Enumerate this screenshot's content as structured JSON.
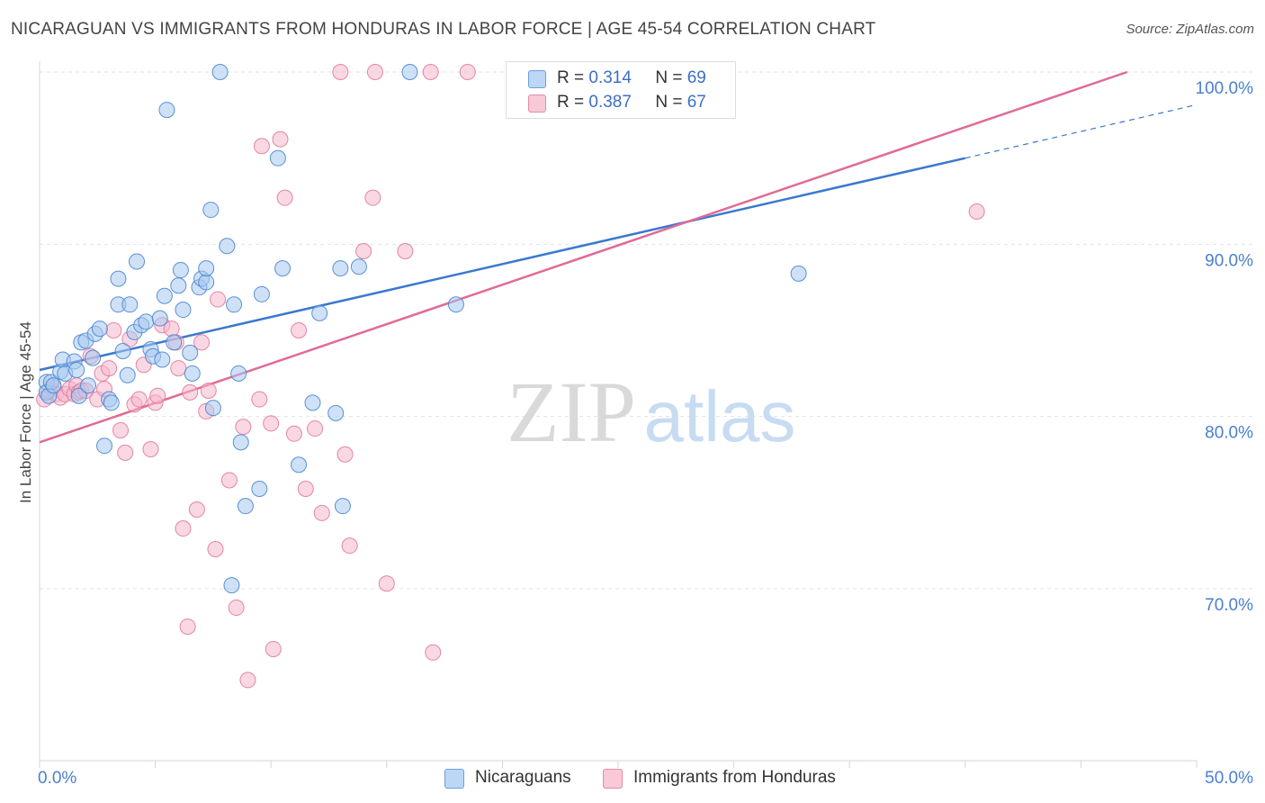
{
  "title": "NICARAGUAN VS IMMIGRANTS FROM HONDURAS IN LABOR FORCE | AGE 45-54 CORRELATION CHART",
  "source": "Source: ZipAtlas.com",
  "watermark": {
    "zip": "ZIP",
    "atlas": "atlas"
  },
  "legend": {
    "series1": {
      "r_label": "R =",
      "r_value": "0.314",
      "n_label": "N =",
      "n_value": "69"
    },
    "series2": {
      "r_label": "R =",
      "r_value": "0.387",
      "n_label": "N =",
      "n_value": "67"
    }
  },
  "colors": {
    "blue_fill": "#a8c8f0",
    "blue_stroke": "#4a86d0",
    "blue_line": "#3a78d0",
    "pink_fill": "#f6b8cc",
    "pink_stroke": "#e07a9c",
    "pink_line": "#e06b96",
    "axis_text": "#4a7fd0",
    "grid": "#dde3ea"
  },
  "chart_data": {
    "type": "scatter",
    "title": "NICARAGUAN VS IMMIGRANTS FROM HONDURAS IN LABOR FORCE | AGE 45-54 CORRELATION CHART",
    "xlabel": "",
    "ylabel": "In Labor Force | Age 45-54",
    "xlim": [
      0,
      50
    ],
    "ylim": [
      60,
      100
    ],
    "x_tick_labels": [
      "0.0%",
      "50.0%"
    ],
    "y_ticks": [
      70,
      80,
      90,
      100
    ],
    "y_tick_labels": [
      "70.0%",
      "80.0%",
      "90.0%",
      "100.0%"
    ],
    "series": [
      {
        "name": "Nicaraguans",
        "r": 0.314,
        "n": 69,
        "trend": {
          "x0": 0,
          "y0": 82.7,
          "x1": 40,
          "y1": 95.0,
          "dash_to_x": 50,
          "dash_to_y": 98.1
        },
        "points": [
          [
            0.3,
            82.0
          ],
          [
            0.3,
            81.4
          ],
          [
            0.4,
            81.2
          ],
          [
            0.5,
            82.0
          ],
          [
            0.6,
            81.8
          ],
          [
            0.9,
            82.6
          ],
          [
            1.0,
            83.3
          ],
          [
            1.1,
            82.5
          ],
          [
            1.5,
            83.2
          ],
          [
            1.6,
            82.7
          ],
          [
            1.7,
            81.2
          ],
          [
            1.8,
            84.3
          ],
          [
            2.0,
            84.4
          ],
          [
            2.1,
            81.8
          ],
          [
            2.3,
            83.4
          ],
          [
            2.4,
            84.8
          ],
          [
            2.6,
            85.1
          ],
          [
            2.8,
            78.3
          ],
          [
            3.0,
            81.0
          ],
          [
            3.1,
            80.8
          ],
          [
            3.4,
            86.5
          ],
          [
            3.4,
            88.0
          ],
          [
            3.6,
            83.8
          ],
          [
            3.8,
            82.4
          ],
          [
            3.9,
            86.5
          ],
          [
            4.1,
            84.9
          ],
          [
            4.2,
            89.0
          ],
          [
            4.4,
            85.3
          ],
          [
            4.6,
            85.5
          ],
          [
            4.8,
            83.9
          ],
          [
            4.9,
            83.5
          ],
          [
            5.2,
            85.7
          ],
          [
            5.3,
            83.3
          ],
          [
            5.4,
            87.0
          ],
          [
            5.5,
            97.8
          ],
          [
            5.8,
            84.3
          ],
          [
            6.0,
            87.6
          ],
          [
            6.1,
            88.5
          ],
          [
            6.2,
            86.2
          ],
          [
            6.5,
            83.7
          ],
          [
            6.6,
            82.5
          ],
          [
            6.9,
            87.5
          ],
          [
            7.0,
            88.0
          ],
          [
            7.2,
            87.8
          ],
          [
            7.2,
            88.6
          ],
          [
            7.4,
            92.0
          ],
          [
            7.5,
            80.5
          ],
          [
            7.8,
            100.0
          ],
          [
            8.1,
            89.9
          ],
          [
            8.3,
            70.2
          ],
          [
            8.4,
            86.5
          ],
          [
            8.6,
            82.5
          ],
          [
            8.7,
            78.5
          ],
          [
            8.9,
            74.8
          ],
          [
            9.5,
            75.8
          ],
          [
            9.6,
            87.1
          ],
          [
            10.3,
            95.0
          ],
          [
            10.5,
            88.6
          ],
          [
            11.2,
            77.2
          ],
          [
            11.8,
            80.8
          ],
          [
            12.1,
            86.0
          ],
          [
            12.8,
            80.2
          ],
          [
            13.0,
            88.6
          ],
          [
            13.1,
            74.8
          ],
          [
            13.8,
            88.7
          ],
          [
            16.0,
            100.0
          ],
          [
            18.0,
            86.5
          ],
          [
            23.5,
            100.0
          ],
          [
            32.8,
            88.3
          ]
        ]
      },
      {
        "name": "Immigrants from Honduras",
        "r": 0.387,
        "n": 67,
        "trend": {
          "x0": 0,
          "y0": 78.5,
          "x1": 47,
          "y1": 100.0
        },
        "points": [
          [
            0.2,
            81.0
          ],
          [
            0.4,
            81.5
          ],
          [
            0.6,
            81.7
          ],
          [
            0.7,
            81.3
          ],
          [
            0.9,
            81.1
          ],
          [
            1.1,
            81.3
          ],
          [
            1.3,
            81.6
          ],
          [
            1.5,
            81.3
          ],
          [
            1.6,
            81.8
          ],
          [
            1.7,
            81.4
          ],
          [
            1.8,
            81.5
          ],
          [
            2.0,
            81.5
          ],
          [
            2.2,
            83.5
          ],
          [
            2.5,
            81.0
          ],
          [
            2.7,
            82.5
          ],
          [
            2.8,
            81.6
          ],
          [
            3.0,
            82.8
          ],
          [
            3.2,
            85.0
          ],
          [
            3.5,
            79.2
          ],
          [
            3.7,
            77.9
          ],
          [
            3.9,
            84.5
          ],
          [
            4.1,
            80.7
          ],
          [
            4.3,
            81.0
          ],
          [
            4.5,
            83.0
          ],
          [
            4.8,
            78.1
          ],
          [
            5.0,
            80.8
          ],
          [
            5.1,
            81.2
          ],
          [
            5.3,
            85.3
          ],
          [
            5.7,
            85.1
          ],
          [
            5.9,
            84.3
          ],
          [
            6.0,
            82.8
          ],
          [
            6.2,
            73.5
          ],
          [
            6.4,
            67.8
          ],
          [
            6.5,
            81.4
          ],
          [
            6.8,
            74.6
          ],
          [
            7.0,
            84.3
          ],
          [
            7.2,
            80.3
          ],
          [
            7.3,
            81.5
          ],
          [
            7.6,
            72.3
          ],
          [
            7.7,
            86.8
          ],
          [
            8.2,
            76.3
          ],
          [
            8.5,
            68.9
          ],
          [
            8.8,
            79.4
          ],
          [
            9.0,
            64.7
          ],
          [
            9.5,
            81.0
          ],
          [
            9.6,
            95.7
          ],
          [
            10.0,
            79.6
          ],
          [
            10.1,
            66.5
          ],
          [
            10.4,
            96.1
          ],
          [
            10.6,
            92.7
          ],
          [
            11.0,
            79.0
          ],
          [
            11.2,
            85.0
          ],
          [
            11.5,
            75.8
          ],
          [
            11.9,
            79.3
          ],
          [
            12.2,
            74.4
          ],
          [
            13.0,
            100.0
          ],
          [
            13.2,
            77.8
          ],
          [
            13.4,
            72.5
          ],
          [
            14.0,
            89.6
          ],
          [
            14.4,
            92.7
          ],
          [
            14.5,
            100.0
          ],
          [
            15.0,
            70.3
          ],
          [
            15.8,
            89.6
          ],
          [
            16.9,
            100.0
          ],
          [
            17.0,
            66.3
          ],
          [
            18.5,
            100.0
          ],
          [
            40.5,
            91.9
          ]
        ]
      }
    ]
  }
}
